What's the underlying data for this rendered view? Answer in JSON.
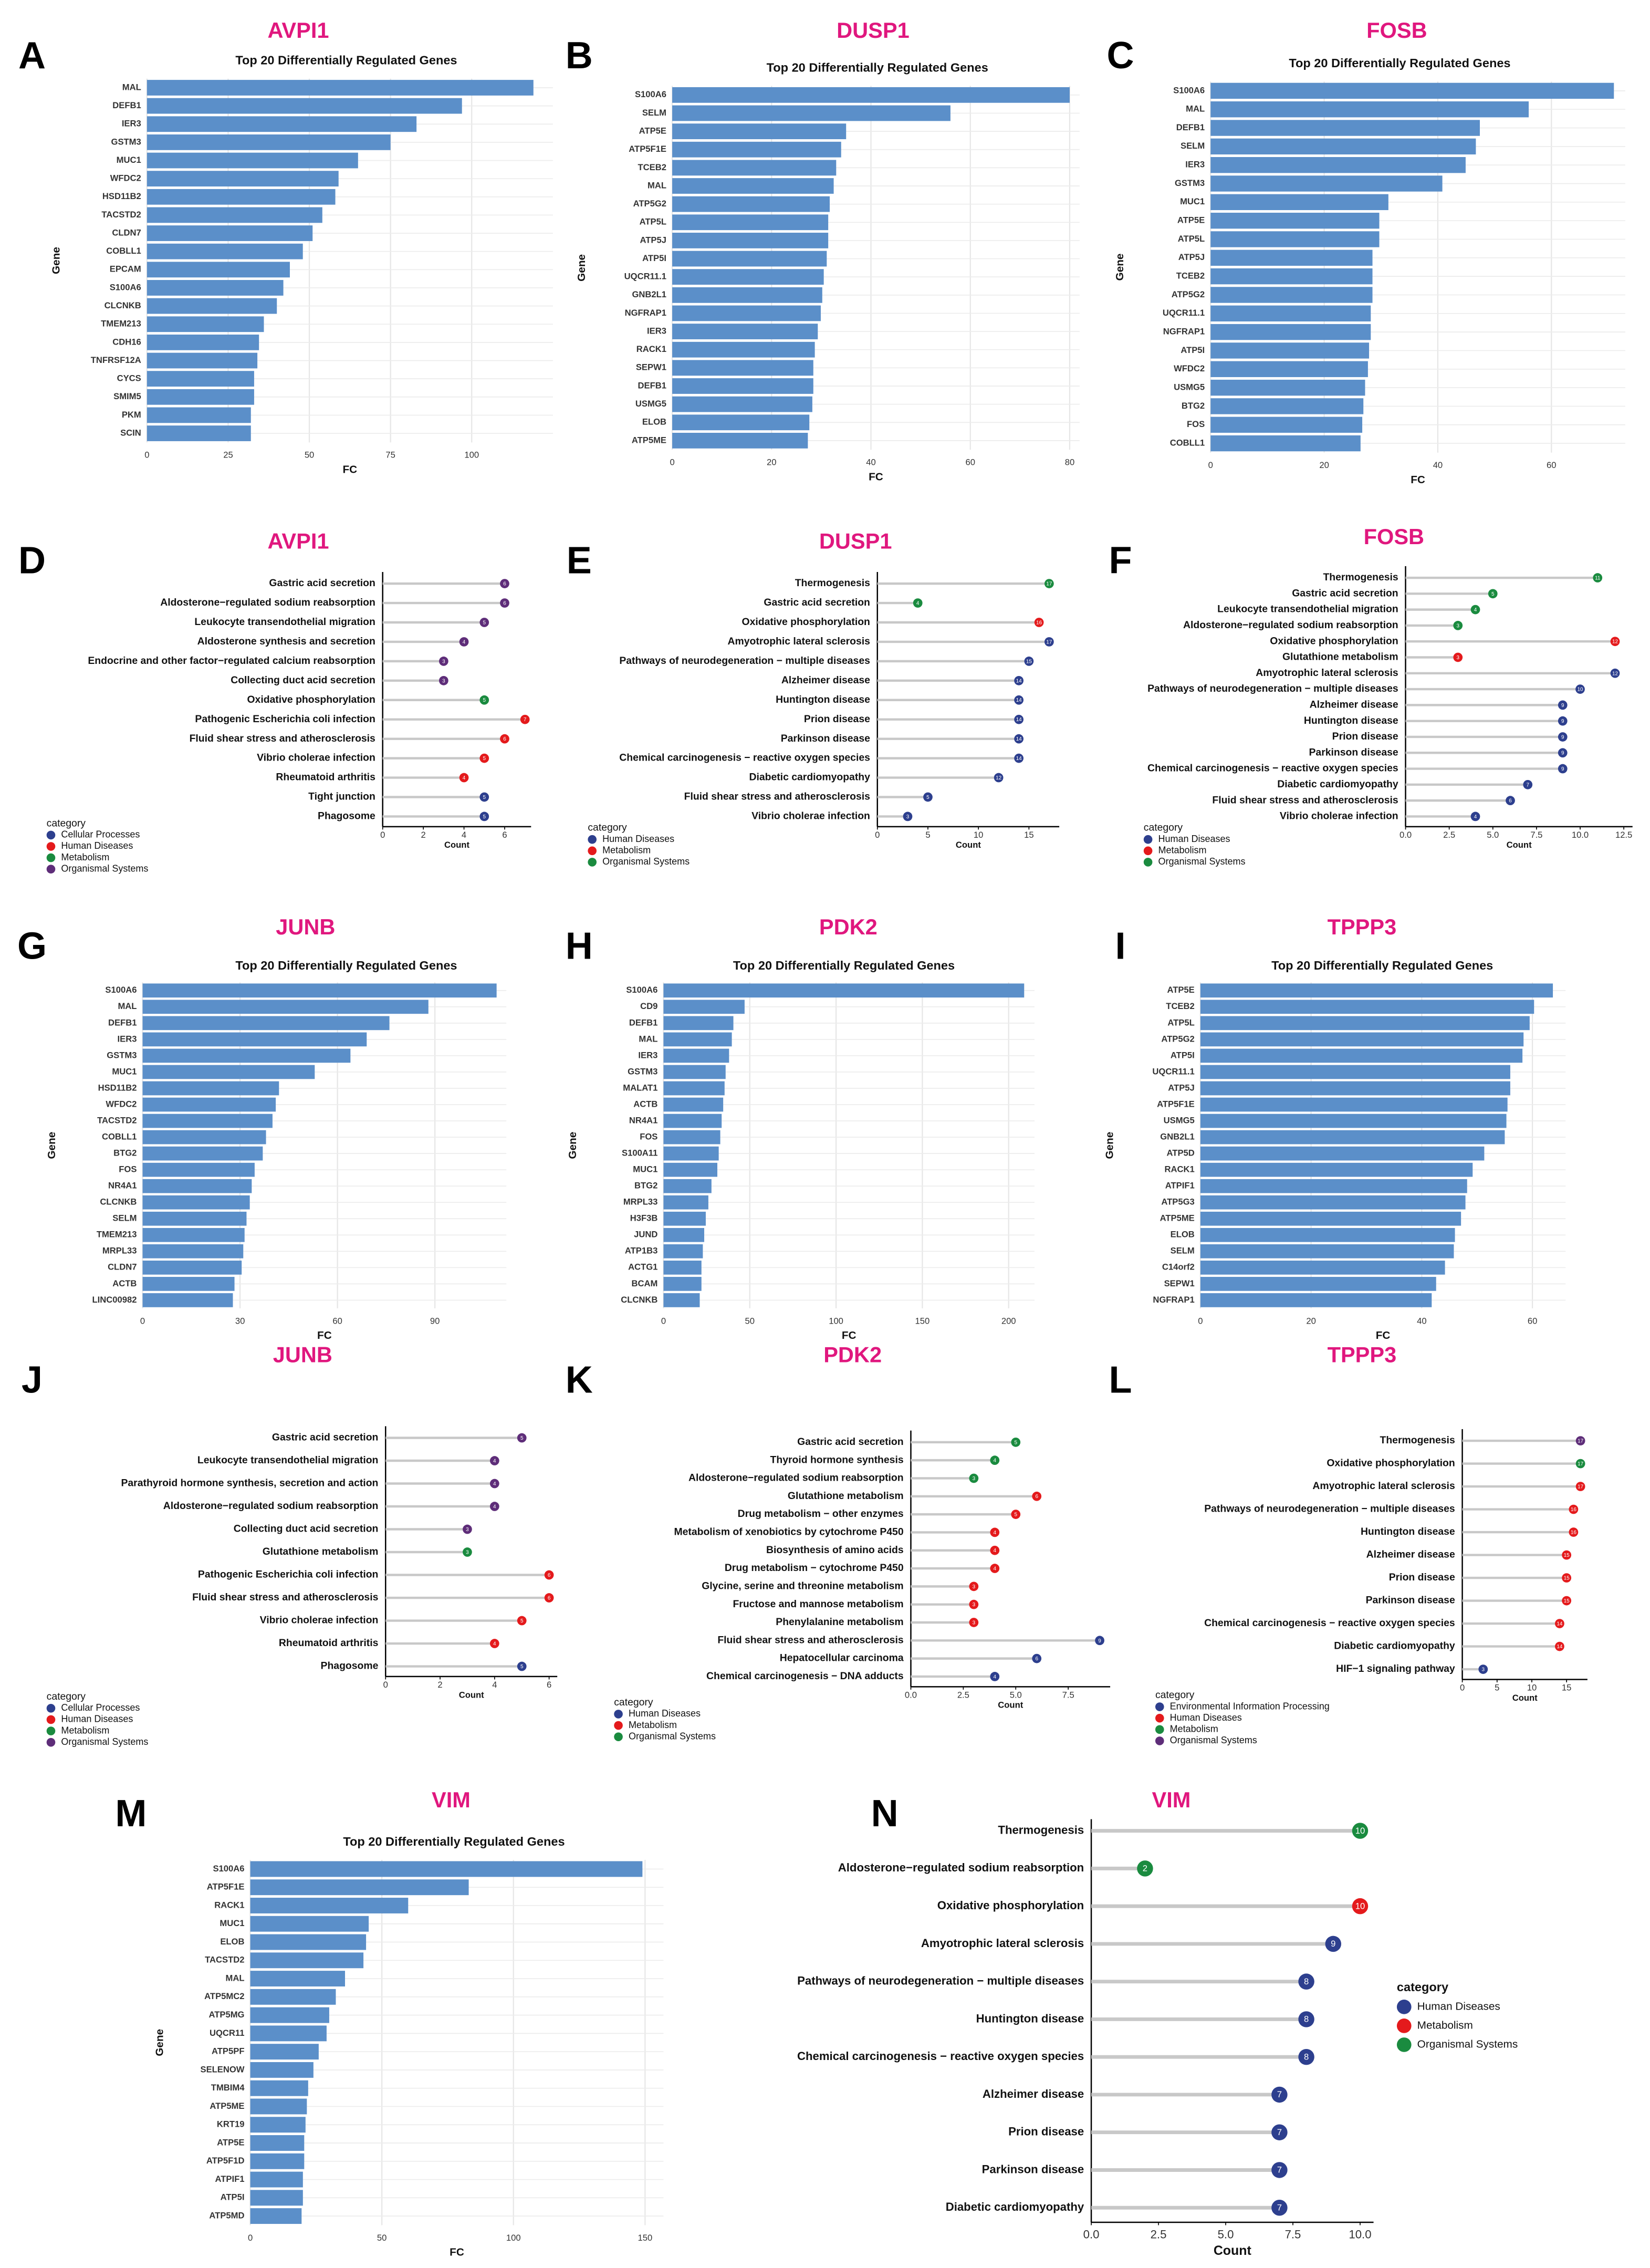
{
  "chart_data": [
    {
      "type": "bar",
      "label": "A",
      "title": "AVPI1",
      "subtitle": "Top 20 Differentially Regulated Genes",
      "x_label": "FC",
      "y_label": "Gene",
      "color": "#5b8fc9",
      "categories": [
        "MAL",
        "DEFB1",
        "IER3",
        "GSTM3",
        "MUC1",
        "WFDC2",
        "HSD11B2",
        "TACSTD2",
        "CLDN7",
        "COBLL1",
        "EPCAM",
        "S100A6",
        "CLCNKB",
        "TMEM213",
        "CDH16",
        "TNFRSF12A",
        "CYCS",
        "SMIM5",
        "PKM",
        "SCIN"
      ],
      "values": [
        119,
        97,
        83,
        75,
        65,
        59,
        58,
        54,
        51,
        48,
        44,
        42,
        40,
        36,
        34.5,
        34,
        33,
        33,
        32,
        32
      ],
      "xlim": [
        0,
        125
      ],
      "xticks": [
        0,
        25,
        50,
        75,
        100
      ],
      "grid": true
    },
    {
      "type": "bar",
      "label": "B",
      "title": "DUSP1",
      "subtitle": "Top 20 Differentially Regulated Genes",
      "x_label": "FC",
      "y_label": "Gene",
      "color": "#5b8fc9",
      "categories": [
        "S100A6",
        "SELM",
        "ATP5E",
        "ATP5F1E",
        "TCEB2",
        "MAL",
        "ATP5G2",
        "ATP5L",
        "ATP5J",
        "ATP5I",
        "UQCR11.1",
        "GNB2L1",
        "NGFRAP1",
        "IER3",
        "RACK1",
        "SEPW1",
        "DEFB1",
        "USMG5",
        "ELOB",
        "ATP5ME"
      ],
      "values": [
        80,
        56,
        35,
        34,
        33,
        32.5,
        31.7,
        31.4,
        31.4,
        31.1,
        30.5,
        30.2,
        29.9,
        29.3,
        28.7,
        28.4,
        28.4,
        28.2,
        27.6,
        27.3
      ],
      "xlim": [
        0,
        82
      ],
      "xticks": [
        0,
        20,
        40,
        60,
        80
      ],
      "grid": true
    },
    {
      "type": "bar",
      "label": "C",
      "title": "FOSB",
      "subtitle": "Top 20 Differentially Regulated Genes",
      "x_label": "FC",
      "y_label": "Gene",
      "color": "#5b8fc9",
      "categories": [
        "S100A6",
        "MAL",
        "DEFB1",
        "SELM",
        "IER3",
        "GSTM3",
        "MUC1",
        "ATP5E",
        "ATP5L",
        "ATP5J",
        "TCEB2",
        "ATP5G2",
        "UQCR11.1",
        "NGFRAP1",
        "ATP5I",
        "WFDC2",
        "USMG5",
        "BTG2",
        "FOS",
        "COBLL1"
      ],
      "values": [
        71,
        56,
        47.4,
        46.7,
        44.9,
        40.8,
        31.3,
        29.7,
        29.7,
        28.5,
        28.5,
        28.5,
        28.2,
        28.2,
        27.9,
        27.7,
        27.2,
        26.9,
        26.7,
        26.4
      ],
      "xlim": [
        0,
        73
      ],
      "xticks": [
        0,
        20,
        40,
        60
      ],
      "grid": true
    },
    {
      "type": "lollipop",
      "label": "D",
      "title": "AVPI1",
      "x_label": "Count",
      "legend_title": "category",
      "categories": [
        "Gastric acid secretion",
        "Aldosterone−regulated sodium reabsorption",
        "Leukocyte transendothelial migration",
        "Aldosterone synthesis and secretion",
        "Endocrine and other factor−regulated calcium reabsorption",
        "Collecting duct acid secretion",
        "Oxidative phosphorylation",
        "Pathogenic Escherichia coli infection",
        "Fluid shear stress and atherosclerosis",
        "Vibrio cholerae infection",
        "Rheumatoid arthritis",
        "Tight junction",
        "Phagosome"
      ],
      "values": [
        6,
        6,
        5,
        4,
        3,
        3,
        5,
        7,
        6,
        5,
        4,
        5,
        5
      ],
      "groups": [
        "Organismal Systems",
        "Organismal Systems",
        "Organismal Systems",
        "Organismal Systems",
        "Organismal Systems",
        "Organismal Systems",
        "Metabolism",
        "Human Diseases",
        "Human Diseases",
        "Human Diseases",
        "Human Diseases",
        "Cellular Processes",
        "Cellular Processes"
      ],
      "legend": [
        {
          "name": "Cellular Processes",
          "color": "#2d3f8e"
        },
        {
          "name": "Human Diseases",
          "color": "#e41a1c"
        },
        {
          "name": "Metabolism",
          "color": "#1a8b3f"
        },
        {
          "name": "Organismal Systems",
          "color": "#5e2d79"
        }
      ],
      "xlim": [
        0,
        7.3
      ],
      "xticks": [
        0,
        2,
        4,
        6
      ]
    },
    {
      "type": "lollipop",
      "label": "E",
      "title": "DUSP1",
      "x_label": "Count",
      "legend_title": "category",
      "categories": [
        "Thermogenesis",
        "Gastric acid secretion",
        "Oxidative phosphorylation",
        "Amyotrophic lateral sclerosis",
        "Pathways of neurodegeneration − multiple diseases",
        "Alzheimer disease",
        "Huntington disease",
        "Prion disease",
        "Parkinson disease",
        "Chemical carcinogenesis − reactive oxygen species",
        "Diabetic cardiomyopathy",
        "Fluid shear stress and atherosclerosis",
        "Vibrio cholerae infection"
      ],
      "values": [
        17,
        4,
        16,
        17,
        15,
        14,
        14,
        14,
        14,
        14,
        12,
        5,
        3
      ],
      "groups": [
        "Organismal Systems",
        "Organismal Systems",
        "Metabolism",
        "Human Diseases",
        "Human Diseases",
        "Human Diseases",
        "Human Diseases",
        "Human Diseases",
        "Human Diseases",
        "Human Diseases",
        "Human Diseases",
        "Human Diseases",
        "Human Diseases"
      ],
      "legend": [
        {
          "name": "Human Diseases",
          "color": "#2d3f8e"
        },
        {
          "name": "Metabolism",
          "color": "#e41a1c"
        },
        {
          "name": "Organismal Systems",
          "color": "#1a8b3f"
        }
      ],
      "xlim": [
        0,
        18
      ],
      "xticks": [
        0,
        5,
        10,
        15
      ]
    },
    {
      "type": "lollipop",
      "label": "F",
      "title": "FOSB",
      "x_label": "Count",
      "legend_title": "category",
      "categories": [
        "Thermogenesis",
        "Gastric acid secretion",
        "Leukocyte transendothelial migration",
        "Aldosterone−regulated sodium reabsorption",
        "Oxidative phosphorylation",
        "Glutathione metabolism",
        "Amyotrophic lateral sclerosis",
        "Pathways of neurodegeneration − multiple diseases",
        "Alzheimer disease",
        "Huntington disease",
        "Prion disease",
        "Parkinson disease",
        "Chemical carcinogenesis − reactive oxygen species",
        "Diabetic cardiomyopathy",
        "Fluid shear stress and atherosclerosis",
        "Vibrio cholerae infection"
      ],
      "values": [
        11,
        5,
        4,
        3,
        12,
        3,
        12,
        10,
        9,
        9,
        9,
        9,
        9,
        7,
        6,
        4
      ],
      "groups": [
        "Organismal Systems",
        "Organismal Systems",
        "Organismal Systems",
        "Organismal Systems",
        "Metabolism",
        "Metabolism",
        "Human Diseases",
        "Human Diseases",
        "Human Diseases",
        "Human Diseases",
        "Human Diseases",
        "Human Diseases",
        "Human Diseases",
        "Human Diseases",
        "Human Diseases",
        "Human Diseases"
      ],
      "legend": [
        {
          "name": "Human Diseases",
          "color": "#2d3f8e"
        },
        {
          "name": "Metabolism",
          "color": "#e41a1c"
        },
        {
          "name": "Organismal Systems",
          "color": "#1a8b3f"
        }
      ],
      "xlim": [
        0,
        13
      ],
      "xticks": [
        {
          "value": 0,
          "label": "0.0"
        },
        2.5,
        {
          "value": 5,
          "label": "5.0"
        },
        7.5,
        {
          "value": 10,
          "label": "10.0"
        },
        12.5
      ]
    },
    {
      "type": "bar",
      "label": "G",
      "title": "JUNB",
      "subtitle": "Top 20 Differentially Regulated Genes",
      "x_label": "FC",
      "y_label": "Gene",
      "color": "#5b8fc9",
      "categories": [
        "S100A6",
        "MAL",
        "DEFB1",
        "IER3",
        "GSTM3",
        "MUC1",
        "HSD11B2",
        "WFDC2",
        "TACSTD2",
        "COBLL1",
        "BTG2",
        "FOS",
        "NR4A1",
        "CLCNKB",
        "SELM",
        "TMEM213",
        "MRPL33",
        "CLDN7",
        "ACTB",
        "LINC00982"
      ],
      "values": [
        109,
        88,
        76,
        69,
        64,
        53,
        42,
        41,
        40,
        38,
        37,
        34.5,
        33.6,
        33,
        32,
        31.4,
        31,
        30.5,
        28.3,
        27.8
      ],
      "xlim": [
        0,
        112
      ],
      "xticks": [
        0,
        30,
        60,
        90
      ],
      "grid": true
    },
    {
      "type": "bar",
      "label": "H",
      "title": "PDK2",
      "subtitle": "Top 20 Differentially Regulated Genes",
      "x_label": "FC",
      "y_label": "Gene",
      "color": "#5b8fc9",
      "categories": [
        "S100A6",
        "CD9",
        "DEFB1",
        "MAL",
        "IER3",
        "GSTM3",
        "MALAT1",
        "ACTB",
        "NR4A1",
        "FOS",
        "S100A11",
        "MUC1",
        "BTG2",
        "MRPL33",
        "H3F3B",
        "JUND",
        "ATP1B3",
        "ACTG1",
        "BCAM",
        "CLCNKB"
      ],
      "values": [
        209,
        47,
        40.5,
        39.6,
        38,
        36,
        35.4,
        34.6,
        33.7,
        32.9,
        32,
        31.2,
        27.8,
        26,
        24.5,
        23.6,
        22.8,
        22,
        22,
        21
      ],
      "xlim": [
        0,
        215
      ],
      "xticks": [
        0,
        50,
        100,
        150,
        200
      ],
      "grid": true
    },
    {
      "type": "bar",
      "label": "I",
      "title": "TPPP3",
      "subtitle": "Top 20 Differentially Regulated Genes",
      "x_label": "FC",
      "y_label": "Gene",
      "color": "#5b8fc9",
      "categories": [
        "ATP5E",
        "TCEB2",
        "ATP5L",
        "ATP5G2",
        "ATP5I",
        "UQCR11.1",
        "ATP5J",
        "ATP5F1E",
        "USMG5",
        "GNB2L1",
        "ATP5D",
        "RACK1",
        "ATPIF1",
        "ATP5G3",
        "ATP5ME",
        "ELOB",
        "SELM",
        "C14orf2",
        "SEPW1",
        "NGFRAP1"
      ],
      "values": [
        63.7,
        60.3,
        59.5,
        58.4,
        58.2,
        56,
        56,
        55.5,
        55.3,
        55,
        51.3,
        49.2,
        48.2,
        47.9,
        47.1,
        46,
        45.8,
        44.2,
        42.6,
        41.8
      ],
      "xlim": [
        0,
        66
      ],
      "xticks": [
        0,
        20,
        40,
        60
      ],
      "grid": true
    },
    {
      "type": "lollipop",
      "label": "J",
      "title": "JUNB",
      "x_label": "Count",
      "legend_title": "category",
      "categories": [
        "Gastric acid secretion",
        "Leukocyte transendothelial migration",
        "Parathyroid hormone synthesis, secretion and action",
        "Aldosterone−regulated sodium reabsorption",
        "Collecting duct acid secretion",
        "Glutathione metabolism",
        "Pathogenic Escherichia coli infection",
        "Fluid shear stress and atherosclerosis",
        "Vibrio cholerae infection",
        "Rheumatoid arthritis",
        "Phagosome"
      ],
      "values": [
        5,
        4,
        4,
        4,
        3,
        3,
        6,
        6,
        5,
        4,
        5
      ],
      "groups": [
        "Organismal Systems",
        "Organismal Systems",
        "Organismal Systems",
        "Organismal Systems",
        "Organismal Systems",
        "Metabolism",
        "Human Diseases",
        "Human Diseases",
        "Human Diseases",
        "Human Diseases",
        "Cellular Processes"
      ],
      "legend": [
        {
          "name": "Cellular Processes",
          "color": "#2d3f8e"
        },
        {
          "name": "Human Diseases",
          "color": "#e41a1c"
        },
        {
          "name": "Metabolism",
          "color": "#1a8b3f"
        },
        {
          "name": "Organismal Systems",
          "color": "#5e2d79"
        }
      ],
      "xlim": [
        0,
        6.3
      ],
      "xticks": [
        0,
        2,
        4,
        6
      ]
    },
    {
      "type": "lollipop",
      "label": "K",
      "title": "PDK2",
      "x_label": "Count",
      "legend_title": "category",
      "categories": [
        "Gastric acid secretion",
        "Thyroid hormone synthesis",
        "Aldosterone−regulated sodium reabsorption",
        "Glutathione metabolism",
        "Drug metabolism − other enzymes",
        "Metabolism of xenobiotics by cytochrome P450",
        "Biosynthesis of amino acids",
        "Drug metabolism − cytochrome P450",
        "Glycine, serine and threonine metabolism",
        "Fructose and mannose metabolism",
        "Phenylalanine metabolism",
        "Fluid shear stress and atherosclerosis",
        "Hepatocellular carcinoma",
        "Chemical carcinogenesis − DNA adducts"
      ],
      "values": [
        5,
        4,
        3,
        6,
        5,
        4,
        4,
        4,
        3,
        3,
        3,
        9,
        6,
        4
      ],
      "groups": [
        "Organismal Systems",
        "Organismal Systems",
        "Organismal Systems",
        "Metabolism",
        "Metabolism",
        "Metabolism",
        "Metabolism",
        "Metabolism",
        "Metabolism",
        "Metabolism",
        "Metabolism",
        "Human Diseases",
        "Human Diseases",
        "Human Diseases"
      ],
      "legend": [
        {
          "name": "Human Diseases",
          "color": "#2d3f8e"
        },
        {
          "name": "Metabolism",
          "color": "#e41a1c"
        },
        {
          "name": "Organismal Systems",
          "color": "#1a8b3f"
        }
      ],
      "xlim": [
        0,
        9.5
      ],
      "xticks": [
        {
          "value": 0,
          "label": "0.0"
        },
        2.5,
        {
          "value": 5,
          "label": "5.0"
        },
        7.5
      ]
    },
    {
      "type": "lollipop",
      "label": "L",
      "title": "TPPP3",
      "x_label": "Count",
      "legend_title": "category",
      "categories": [
        "Thermogenesis",
        "Oxidative phosphorylation",
        "Amyotrophic lateral sclerosis",
        "Pathways of neurodegeneration − multiple diseases",
        "Huntington disease",
        "Alzheimer disease",
        "Prion disease",
        "Parkinson disease",
        "Chemical carcinogenesis − reactive oxygen species",
        "Diabetic cardiomyopathy",
        "HIF−1 signaling pathway"
      ],
      "values": [
        17,
        17,
        17,
        16,
        16,
        15,
        15,
        15,
        14,
        14,
        3
      ],
      "groups": [
        "Organismal Systems",
        "Metabolism",
        "Human Diseases",
        "Human Diseases",
        "Human Diseases",
        "Human Diseases",
        "Human Diseases",
        "Human Diseases",
        "Human Diseases",
        "Human Diseases",
        "Environmental Information Processing"
      ],
      "legend": [
        {
          "name": "Environmental Information Processing",
          "color": "#2d3f8e"
        },
        {
          "name": "Human Diseases",
          "color": "#e41a1c"
        },
        {
          "name": "Metabolism",
          "color": "#1a8b3f"
        },
        {
          "name": "Organismal Systems",
          "color": "#5e2d79"
        }
      ],
      "xlim": [
        0,
        18
      ],
      "xticks": [
        0,
        5,
        10,
        15
      ]
    },
    {
      "type": "bar",
      "label": "M",
      "title": "VIM",
      "subtitle": "Top 20 Differentially Regulated Genes",
      "x_label": "FC",
      "y_label": "Gene",
      "color": "#5b8fc9",
      "categories": [
        "S100A6",
        "ATP5F1E",
        "RACK1",
        "MUC1",
        "ELOB",
        "TACSTD2",
        "MAL",
        "ATP5MC2",
        "ATP5MG",
        "UQCR11",
        "ATP5PF",
        "SELENOW",
        "TMBIM4",
        "ATP5ME",
        "KRT19",
        "ATP5E",
        "ATP5F1D",
        "ATPIF1",
        "ATP5I",
        "ATP5MD"
      ],
      "values": [
        149,
        83,
        60,
        45,
        44,
        43,
        36,
        32.5,
        30,
        29,
        26,
        24,
        22,
        21.5,
        21,
        20.5,
        20.5,
        20,
        20,
        19.5
      ],
      "xlim": [
        0,
        157
      ],
      "xticks": [
        0,
        50,
        100,
        150
      ],
      "grid": true
    },
    {
      "type": "lollipop",
      "label": "N",
      "title": "VIM",
      "x_label": "Count",
      "legend_title": "category",
      "categories": [
        "Thermogenesis",
        "Aldosterone−regulated sodium reabsorption",
        "Oxidative phosphorylation",
        "Amyotrophic lateral sclerosis",
        "Pathways of neurodegeneration − multiple diseases",
        "Huntington disease",
        "Chemical carcinogenesis − reactive oxygen species",
        "Alzheimer disease",
        "Prion disease",
        "Parkinson disease",
        "Diabetic cardiomyopathy"
      ],
      "values": [
        10,
        2,
        10,
        9,
        8,
        8,
        8,
        7,
        7,
        7,
        7
      ],
      "groups": [
        "Organismal Systems",
        "Organismal Systems",
        "Metabolism",
        "Human Diseases",
        "Human Diseases",
        "Human Diseases",
        "Human Diseases",
        "Human Diseases",
        "Human Diseases",
        "Human Diseases",
        "Human Diseases"
      ],
      "legend": [
        {
          "name": "Human Diseases",
          "color": "#2d3f8e"
        },
        {
          "name": "Metabolism",
          "color": "#e41a1c"
        },
        {
          "name": "Organismal Systems",
          "color": "#1a8b3f"
        }
      ],
      "xlim": [
        0,
        10.5
      ],
      "xticks": [
        {
          "value": 0,
          "label": "0.0"
        },
        2.5,
        {
          "value": 5,
          "label": "5.0"
        },
        7.5,
        {
          "value": 10,
          "label": "10.0"
        }
      ]
    }
  ]
}
